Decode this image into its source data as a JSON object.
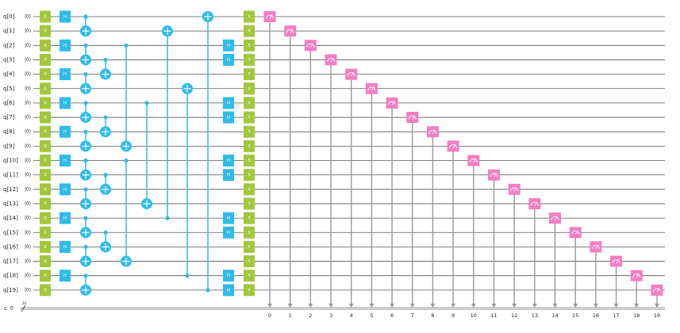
{
  "qubits": [
    {
      "label": "q[0]",
      "init": "|0⟩"
    },
    {
      "label": "q[1]",
      "init": "|0⟩"
    },
    {
      "label": "q[2]",
      "init": "|0⟩"
    },
    {
      "label": "q[3]",
      "init": "|0⟩"
    },
    {
      "label": "q[4]",
      "init": "|0⟩"
    },
    {
      "label": "q[5]",
      "init": "|0⟩"
    },
    {
      "label": "q[6]",
      "init": "|0⟩"
    },
    {
      "label": "q[7]",
      "init": "|0⟩"
    },
    {
      "label": "q[8]",
      "init": "|0⟩"
    },
    {
      "label": "q[9]",
      "init": "|0⟩"
    },
    {
      "label": "q[10]",
      "init": "|0⟩"
    },
    {
      "label": "q[11]",
      "init": "|0⟩"
    },
    {
      "label": "q[12]",
      "init": "|0⟩"
    },
    {
      "label": "q[13]",
      "init": "|0⟩"
    },
    {
      "label": "q[14]",
      "init": "|0⟩"
    },
    {
      "label": "q[15]",
      "init": "|0⟩"
    },
    {
      "label": "q[16]",
      "init": "|0⟩"
    },
    {
      "label": "q[17]",
      "init": "|0⟩"
    },
    {
      "label": "q[18]",
      "init": "|0⟩"
    },
    {
      "label": "q[19]",
      "init": "|0⟩"
    }
  ],
  "columns": [
    {
      "kind": "gate",
      "label": "X",
      "qubits": [
        0,
        1,
        2,
        3,
        4,
        5,
        6,
        7,
        8,
        9,
        10,
        11,
        12,
        13,
        14,
        15,
        16,
        17,
        18,
        19
      ]
    },
    {
      "kind": "gate",
      "label": "H",
      "qubits": [
        0,
        2,
        4,
        6,
        8,
        10,
        12,
        14,
        16,
        18
      ]
    },
    {
      "kind": "cx",
      "pairs": [
        [
          0,
          1
        ],
        [
          2,
          3
        ],
        [
          4,
          5
        ],
        [
          6,
          7
        ],
        [
          8,
          9
        ],
        [
          10,
          11
        ],
        [
          12,
          13
        ],
        [
          14,
          15
        ],
        [
          16,
          17
        ],
        [
          18,
          19
        ]
      ]
    },
    {
      "kind": "cx",
      "pairs": [
        [
          3,
          4
        ],
        [
          7,
          8
        ],
        [
          11,
          12
        ],
        [
          15,
          16
        ]
      ]
    },
    {
      "kind": "cx",
      "pairs": [
        [
          2,
          9
        ],
        [
          10,
          17
        ]
      ]
    },
    {
      "kind": "cx",
      "pairs": [
        [
          6,
          13
        ]
      ]
    },
    {
      "kind": "cx",
      "pairs": [
        [
          14,
          1
        ]
      ]
    },
    {
      "kind": "cx",
      "pairs": [
        [
          18,
          5
        ]
      ]
    },
    {
      "kind": "cx",
      "pairs": [
        [
          19,
          0
        ]
      ]
    },
    {
      "kind": "gate",
      "label": "H",
      "qubits": [
        2,
        3,
        6,
        7,
        10,
        11,
        14,
        15,
        18,
        19
      ]
    },
    {
      "kind": "gate",
      "label": "X",
      "qubits": [
        0,
        1,
        2,
        3,
        4,
        5,
        6,
        7,
        8,
        9,
        10,
        11,
        12,
        13,
        14,
        15,
        16,
        17,
        18,
        19
      ]
    }
  ],
  "classical": {
    "name": "c",
    "init": "0",
    "size": "20"
  },
  "measure_labels": [
    0,
    1,
    2,
    3,
    4,
    5,
    6,
    7,
    8,
    9,
    10,
    11,
    12,
    13,
    14,
    15,
    16,
    17,
    18,
    19
  ]
}
